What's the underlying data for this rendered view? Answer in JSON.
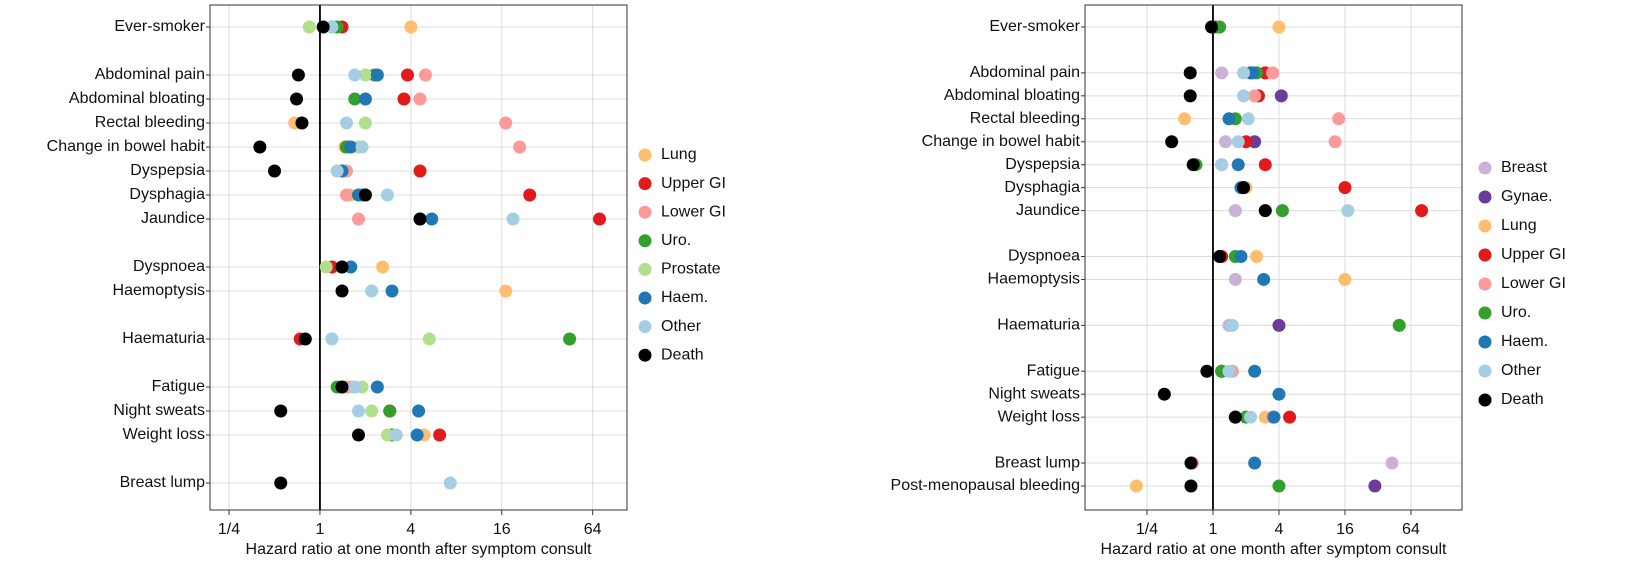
{
  "chart_data": [
    {
      "type": "scatter",
      "xlabel": "Hazard ratio at one month after symptom consult",
      "log_x": true,
      "grid": true,
      "legend": "right",
      "reference_line": 1,
      "xlim": [
        0.187,
        108
      ],
      "xticks": [
        {
          "value": 0.25,
          "label": "1/4"
        },
        1,
        4,
        16,
        64
      ],
      "categories": [
        "Ever-smoker",
        null,
        "Abdominal pain",
        "Abdominal bloating",
        "Rectal bleeding",
        "Change in bowel habit",
        "Dyspepsia",
        "Dysphagia",
        "Jaundice",
        null,
        "Dyspnoea",
        "Haemoptysis",
        null,
        "Haematuria",
        null,
        "Fatigue",
        "Night sweats",
        "Weight loss",
        null,
        "Breast lump"
      ],
      "series": [
        {
          "name": "Lung",
          "color": "#fdbf6f",
          "values": [
            4.0,
            null,
            null,
            null,
            0.68,
            1.46,
            null,
            1.58,
            4.6,
            null,
            2.6,
            17,
            null,
            null,
            null,
            1.6,
            2.9,
            4.9,
            null,
            null
          ]
        },
        {
          "name": "Upper GI",
          "color": "#e31a1c",
          "values": [
            1.4,
            null,
            3.8,
            3.6,
            null,
            1.5,
            4.6,
            24.5,
            71,
            null,
            1.2,
            null,
            null,
            0.74,
            null,
            1.4,
            2.9,
            6.2,
            null,
            null
          ]
        },
        {
          "name": "Lower GI",
          "color": "#fb9a99",
          "values": [
            null,
            null,
            5.0,
            4.6,
            17,
            21,
            1.5,
            1.5,
            1.8,
            null,
            1.4,
            null,
            null,
            null,
            null,
            1.5,
            null,
            null,
            null,
            null
          ]
        },
        {
          "name": "Uro.",
          "color": "#33a02c",
          "values": [
            1.3,
            null,
            2.3,
            1.7,
            null,
            1.5,
            1.4,
            1.9,
            4.6,
            null,
            1.4,
            null,
            null,
            45,
            null,
            1.3,
            2.9,
            3.0,
            null,
            null
          ]
        },
        {
          "name": "Prostate",
          "color": "#b2df8a",
          "values": [
            0.85,
            null,
            2.0,
            null,
            2.0,
            1.8,
            1.4,
            2.0,
            null,
            null,
            1.1,
            null,
            null,
            5.3,
            null,
            1.9,
            2.2,
            2.8,
            null,
            null
          ]
        },
        {
          "name": "Haem.",
          "color": "#1f78b4",
          "values": [
            1.2,
            null,
            2.4,
            2.0,
            null,
            1.6,
            1.4,
            1.8,
            5.5,
            null,
            1.6,
            3.0,
            null,
            null,
            null,
            2.4,
            4.5,
            4.4,
            null,
            null
          ]
        },
        {
          "name": "Other",
          "color": "#a6cee3",
          "values": [
            1.2,
            null,
            1.7,
            null,
            1.5,
            1.9,
            1.3,
            2.8,
            19,
            null,
            null,
            2.2,
            null,
            1.2,
            null,
            1.7,
            1.8,
            3.2,
            null,
            7.3
          ]
        },
        {
          "name": "Death",
          "color": "#000000",
          "values": [
            1.05,
            null,
            0.72,
            0.7,
            0.76,
            0.4,
            0.5,
            2.0,
            4.6,
            null,
            1.4,
            1.4,
            null,
            0.8,
            null,
            1.4,
            0.55,
            1.8,
            null,
            0.55
          ]
        }
      ]
    },
    {
      "type": "scatter",
      "xlabel": "Hazard ratio at one month after symptom consult",
      "log_x": true,
      "grid": true,
      "legend": "right",
      "reference_line": 1,
      "xlim": [
        0.068,
        187
      ],
      "xticks": [
        {
          "value": 0.25,
          "label": "1/4"
        },
        1,
        4,
        16,
        64
      ],
      "categories": [
        "Ever-smoker",
        null,
        "Abdominal pain",
        "Abdominal bloating",
        "Rectal bleeding",
        "Change in bowel habit",
        "Dyspepsia",
        "Dysphagia",
        "Jaundice",
        null,
        "Dyspnoea",
        "Haemoptysis",
        null,
        "Haematuria",
        null,
        "Fatigue",
        "Night sweats",
        "Weight loss",
        null,
        "Breast lump",
        "Post-menopausal bleeding"
      ],
      "series": [
        {
          "name": "Breast",
          "color": "#cab2d6",
          "values": [
            null,
            null,
            1.2,
            null,
            null,
            1.3,
            1.2,
            null,
            1.6,
            null,
            null,
            1.6,
            null,
            1.4,
            null,
            1.2,
            null,
            1.6,
            null,
            43,
            null
          ]
        },
        {
          "name": "Gynae.",
          "color": "#6a3d9a",
          "values": [
            1.05,
            null,
            2.2,
            4.2,
            null,
            2.4,
            null,
            null,
            null,
            null,
            null,
            null,
            null,
            4.0,
            null,
            1.2,
            null,
            1.6,
            null,
            null,
            30
          ]
        },
        {
          "name": "Lung",
          "color": "#fdbf6f",
          "values": [
            4.0,
            null,
            null,
            null,
            0.55,
            null,
            null,
            2.0,
            null,
            null,
            2.5,
            16,
            null,
            null,
            null,
            1.5,
            null,
            3.0,
            null,
            0.65,
            0.2
          ]
        },
        {
          "name": "Upper GI",
          "color": "#e31a1c",
          "values": [
            null,
            null,
            3.0,
            2.6,
            null,
            2.0,
            3.0,
            16,
            80,
            null,
            1.2,
            null,
            null,
            null,
            null,
            null,
            null,
            5.0,
            null,
            null,
            null
          ]
        },
        {
          "name": "Lower GI",
          "color": "#fb9a99",
          "values": [
            null,
            null,
            3.5,
            2.4,
            14,
            13,
            1.2,
            null,
            null,
            null,
            null,
            null,
            null,
            null,
            null,
            1.5,
            null,
            3.5,
            null,
            0.65,
            null
          ]
        },
        {
          "name": "Uro.",
          "color": "#33a02c",
          "values": [
            1.15,
            null,
            2.5,
            null,
            1.6,
            null,
            0.7,
            1.9,
            4.3,
            null,
            1.6,
            null,
            null,
            50,
            null,
            1.2,
            null,
            2.0,
            null,
            null,
            4.0
          ]
        },
        {
          "name": "Haem.",
          "color": "#1f78b4",
          "values": [
            null,
            null,
            2.3,
            null,
            1.4,
            null,
            1.7,
            1.8,
            null,
            null,
            1.8,
            2.9,
            null,
            null,
            null,
            2.4,
            4.0,
            3.6,
            null,
            2.4,
            null
          ]
        },
        {
          "name": "Other",
          "color": "#a6cee3",
          "values": [
            null,
            null,
            1.9,
            1.9,
            2.1,
            1.7,
            1.2,
            null,
            17,
            null,
            null,
            null,
            null,
            1.5,
            null,
            1.4,
            null,
            2.2,
            null,
            null,
            null
          ]
        },
        {
          "name": "Death",
          "color": "#000000",
          "values": [
            0.97,
            null,
            0.62,
            0.62,
            null,
            0.42,
            0.66,
            1.9,
            3.0,
            null,
            1.15,
            null,
            null,
            null,
            null,
            0.88,
            0.36,
            1.6,
            null,
            0.63,
            0.63
          ]
        }
      ]
    }
  ]
}
